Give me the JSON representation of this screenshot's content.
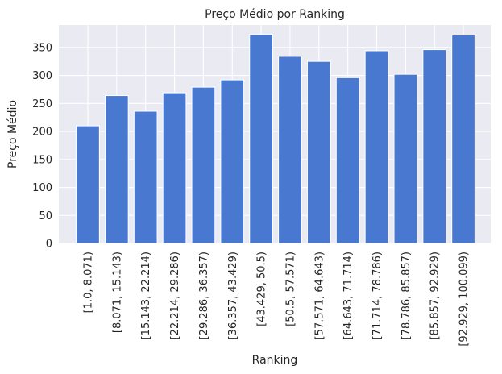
{
  "chart_data": {
    "type": "bar",
    "title": "Preço Médio por Ranking",
    "xlabel": "Ranking",
    "ylabel": "Preço Médio",
    "categories": [
      "[1.0, 8.071)",
      "[8.071, 15.143)",
      "[15.143, 22.214)",
      "[22.214, 29.286)",
      "[29.286, 36.357)",
      "[36.357, 43.429)",
      "[43.429, 50.5)",
      "[50.5, 57.571)",
      "[57.571, 64.643)",
      "[64.643, 71.714)",
      "[71.714, 78.786)",
      "[78.786, 85.857)",
      "[85.857, 92.929)",
      "[92.929, 100.099)"
    ],
    "values": [
      210,
      264,
      236,
      269,
      279,
      292,
      373,
      334,
      325,
      296,
      344,
      302,
      346,
      372
    ],
    "ylim": [
      0,
      390
    ],
    "yticks": [
      0,
      50,
      100,
      150,
      200,
      250,
      300,
      350
    ],
    "grid": true,
    "colors": {
      "bar": "#4878d0",
      "plot_bg": "#eaeaf2",
      "grid": "#ffffff"
    }
  }
}
